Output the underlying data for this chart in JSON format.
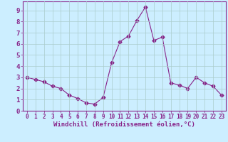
{
  "x": [
    0,
    1,
    2,
    3,
    4,
    5,
    6,
    7,
    8,
    9,
    10,
    11,
    12,
    13,
    14,
    15,
    16,
    17,
    18,
    19,
    20,
    21,
    22,
    23
  ],
  "y": [
    3.0,
    2.8,
    2.6,
    2.2,
    2.0,
    1.4,
    1.1,
    0.7,
    0.6,
    1.2,
    4.3,
    6.2,
    6.7,
    8.1,
    9.3,
    6.3,
    6.6,
    2.5,
    2.3,
    2.0,
    3.0,
    2.5,
    2.2,
    1.4
  ],
  "line_color": "#882288",
  "marker": "D",
  "marker_size": 2.5,
  "bg_color": "#cceeff",
  "grid_color": "#aacccc",
  "tick_color": "#882288",
  "label_color": "#882288",
  "xlabel": "Windchill (Refroidissement éolien,°C)",
  "ylim": [
    0,
    9.8
  ],
  "xlim": [
    -0.5,
    23.5
  ],
  "yticks": [
    0,
    1,
    2,
    3,
    4,
    5,
    6,
    7,
    8,
    9
  ],
  "xticks": [
    0,
    1,
    2,
    3,
    4,
    5,
    6,
    7,
    8,
    9,
    10,
    11,
    12,
    13,
    14,
    15,
    16,
    17,
    18,
    19,
    20,
    21,
    22,
    23
  ],
  "xtick_fontsize": 5.5,
  "ytick_fontsize": 6.5,
  "xlabel_fontsize": 6.5
}
